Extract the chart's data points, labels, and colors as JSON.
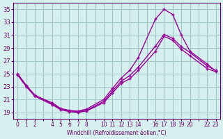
{
  "xlabel": "Windchill (Refroidissement éolien,°C)",
  "bg_color": "#d6f0f0",
  "grid_color": "#a0c8c8",
  "line_color": "#990099",
  "xtick_labels": [
    "0",
    "1",
    "2",
    "",
    "4",
    "5",
    "6",
    "7",
    "8",
    "",
    "10",
    "11",
    "12",
    "13",
    "14",
    "",
    "16",
    "17",
    "18",
    "19",
    "20",
    "",
    "22",
    "23"
  ],
  "xtick_positions": [
    0,
    1,
    2,
    3,
    4,
    5,
    6,
    7,
    8,
    9,
    10,
    11,
    12,
    13,
    14,
    15,
    16,
    17,
    18,
    19,
    20,
    21,
    22,
    23
  ],
  "ylim": [
    18,
    36
  ],
  "xlim": [
    -0.5,
    23.5
  ],
  "yticks": [
    19,
    21,
    23,
    25,
    27,
    29,
    31,
    33,
    35
  ],
  "line1_x": [
    0,
    1,
    2,
    4,
    5,
    6,
    7,
    8,
    10,
    11,
    12,
    13,
    14,
    16,
    17,
    18,
    19,
    20,
    22,
    23
  ],
  "line1_y": [
    25.0,
    23.2,
    21.7,
    20.3,
    19.5,
    19.2,
    19.1,
    19.3,
    20.7,
    22.3,
    23.8,
    24.7,
    26.0,
    29.3,
    31.1,
    30.5,
    29.2,
    28.3,
    26.2,
    25.5
  ],
  "line2_x": [
    0,
    1,
    2,
    4,
    5,
    6,
    7,
    8,
    10,
    11,
    12,
    13,
    14,
    16,
    17,
    18,
    19,
    20,
    22,
    23
  ],
  "line2_y": [
    24.9,
    23.1,
    21.6,
    20.5,
    19.6,
    19.3,
    19.2,
    19.5,
    21.0,
    22.7,
    24.3,
    25.5,
    27.5,
    33.5,
    35.0,
    34.2,
    31.0,
    28.5,
    26.5,
    25.4
  ],
  "line3_x": [
    0,
    1,
    2,
    4,
    5,
    6,
    7,
    8,
    10,
    11,
    12,
    13,
    14,
    16,
    17,
    18,
    19,
    20,
    22,
    23
  ],
  "line3_y": [
    24.8,
    23.0,
    21.5,
    20.2,
    19.4,
    19.1,
    19.0,
    19.2,
    20.5,
    22.0,
    23.5,
    24.2,
    25.5,
    28.5,
    30.8,
    30.2,
    28.8,
    27.8,
    25.8,
    25.3
  ]
}
